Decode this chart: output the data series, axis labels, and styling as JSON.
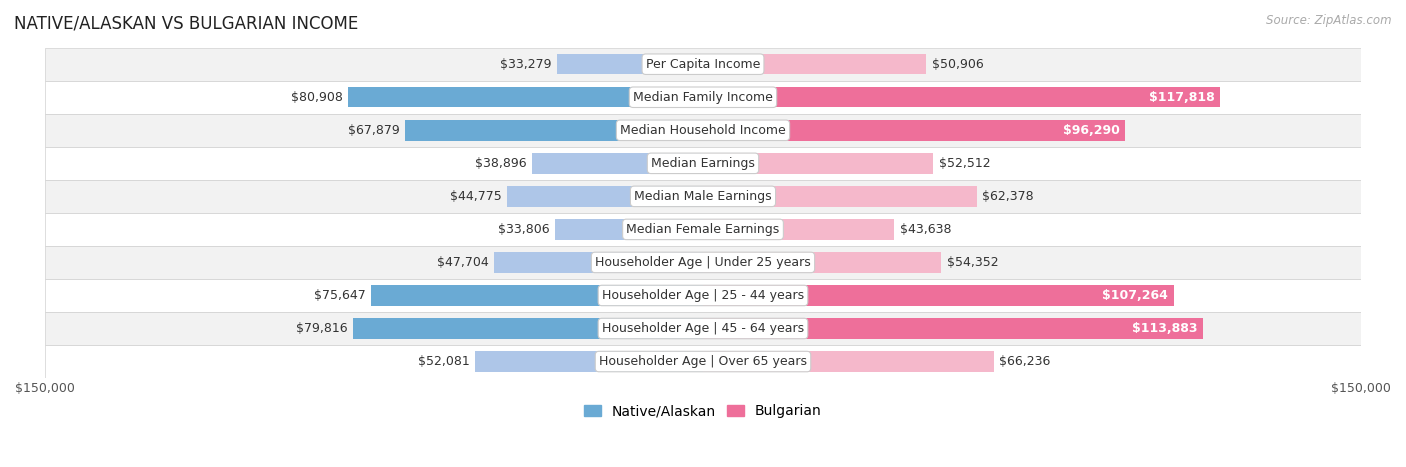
{
  "title": "NATIVE/ALASKAN VS BULGARIAN INCOME",
  "source": "Source: ZipAtlas.com",
  "categories": [
    "Per Capita Income",
    "Median Family Income",
    "Median Household Income",
    "Median Earnings",
    "Median Male Earnings",
    "Median Female Earnings",
    "Householder Age | Under 25 years",
    "Householder Age | 25 - 44 years",
    "Householder Age | 45 - 64 years",
    "Householder Age | Over 65 years"
  ],
  "native_values": [
    33279,
    80908,
    67879,
    38896,
    44775,
    33806,
    47704,
    75647,
    79816,
    52081
  ],
  "bulgarian_values": [
    50906,
    117818,
    96290,
    52512,
    62378,
    43638,
    54352,
    107264,
    113883,
    66236
  ],
  "native_labels": [
    "$33,279",
    "$80,908",
    "$67,879",
    "$38,896",
    "$44,775",
    "$33,806",
    "$47,704",
    "$75,647",
    "$79,816",
    "$52,081"
  ],
  "bulgarian_labels": [
    "$50,906",
    "$117,818",
    "$96,290",
    "$52,512",
    "$62,378",
    "$43,638",
    "$54,352",
    "$107,264",
    "$113,883",
    "$66,236"
  ],
  "native_color_light": "#aec6e8",
  "native_color_dark": "#6aaad4",
  "bulgarian_color_light": "#f5b8cb",
  "bulgarian_color_dark": "#ee6f9a",
  "max_value": 150000,
  "bar_height": 0.62,
  "bg_row_even": "#f2f2f2",
  "bg_row_odd": "#ffffff",
  "label_fontsize": 9.0,
  "category_fontsize": 9.0,
  "title_fontsize": 12,
  "legend_fontsize": 10,
  "native_dark_threshold": 60000,
  "bulgarian_dark_threshold": 90000
}
